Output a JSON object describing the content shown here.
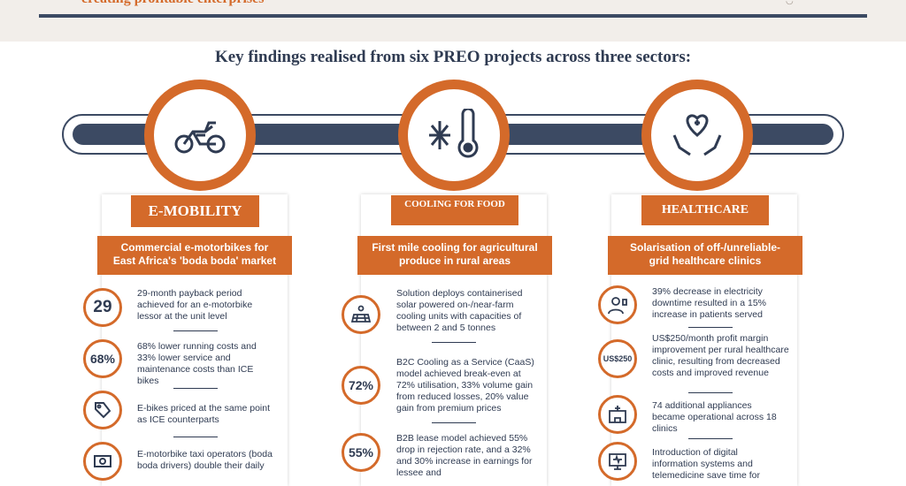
{
  "header": {
    "partial_title": "creating profitable enterprises",
    "heading": "Key findings realised from six PREO projects across three sectors:"
  },
  "colors": {
    "accent": "#d46a2a",
    "navy": "#3c4a63",
    "band": "#f2eeea"
  },
  "sectors": [
    {
      "icon": "motorbike-icon",
      "tag": "E-MOBILITY",
      "subtitle_line1": "Commercial e-motorbikes for",
      "subtitle_line2": "East Africa's 'boda boda' market",
      "findings": [
        {
          "badge": "29",
          "text": "29-month payback period achieved for an e-motorbike lessor at the unit level"
        },
        {
          "badge": "68%",
          "text": "68% lower running costs and 33% lower service and maintenance costs than ICE bikes"
        },
        {
          "badge_icon": "price-tag-icon",
          "text": "E-bikes priced at the same point as ICE counterparts"
        },
        {
          "badge_icon": "money-icon",
          "text": "E-motorbike taxi operators (boda boda drivers) double their daily"
        }
      ]
    },
    {
      "icon": "cold-thermometer-icon",
      "tag": "COOLING FOR FOOD",
      "subtitle_line1": "First mile cooling for agricultural",
      "subtitle_line2": "produce in rural areas",
      "findings": [
        {
          "badge_icon": "solar-panel-icon",
          "text": "Solution deploys containerised solar powered on-/near-farm cooling units with capacities of between 2 and 5 tonnes"
        },
        {
          "badge": "72%",
          "text": "B2C Cooling as a Service (CaaS) model achieved break-even at 72% utilisation, 33% volume gain from reduced losses, 20% value gain from premium prices"
        },
        {
          "badge": "55%",
          "text": "B2B lease model achieved 55% drop in rejection rate, and a 32% and 30% increase in earnings for lessee and"
        }
      ]
    },
    {
      "icon": "hands-heart-icon",
      "tag": "HEALTHCARE",
      "subtitle_line1": "Solarisation of off-/unreliable-",
      "subtitle_line2": "grid healthcare clinics",
      "findings": [
        {
          "badge_icon": "patient-icon",
          "text": "39% decrease in electricity downtime resulted in a 15% increase in patients served"
        },
        {
          "badge": "US$250",
          "text": "US$250/month profit margin improvement per rural healthcare clinic, resulting from decreased costs and improved revenue"
        },
        {
          "badge_icon": "clinic-icon",
          "text": "74 additional appliances became operational across 18 clinics"
        },
        {
          "badge_icon": "telemedicine-icon",
          "text": "Introduction of digital information systems and telemedicine save time for"
        }
      ]
    }
  ]
}
